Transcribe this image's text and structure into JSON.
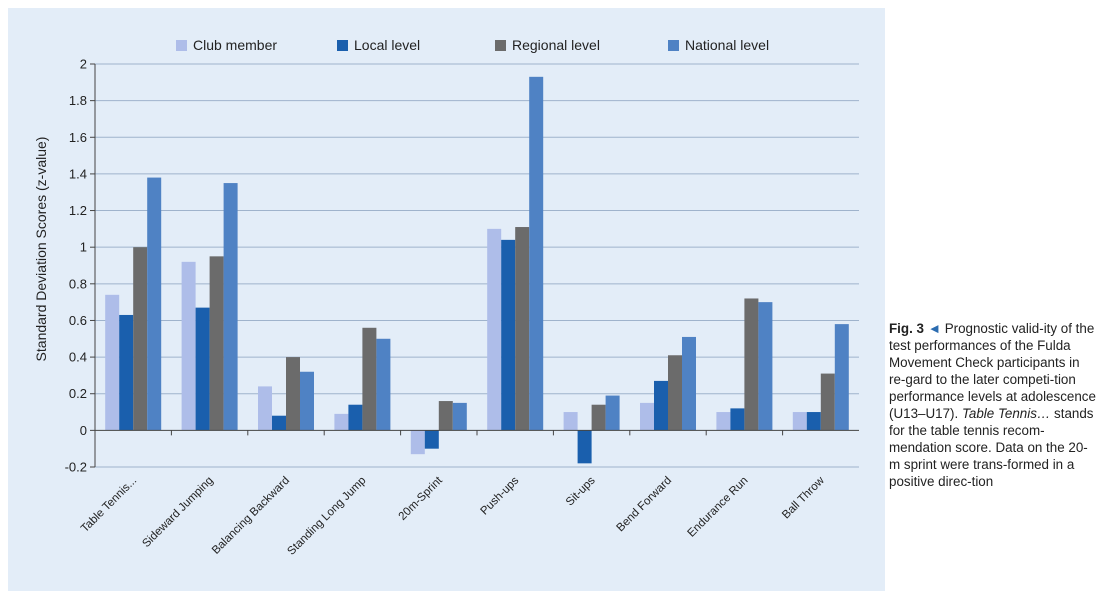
{
  "chart_data": {
    "type": "bar",
    "ylabel": "Standard Deviation Scores (z-value)",
    "xlabel": "",
    "ylim": [
      -0.2,
      2
    ],
    "yticks": [
      "-0.2",
      "0",
      "0.2",
      "0.4",
      "0.6",
      "0.8",
      "1",
      "1.2",
      "1.4",
      "1.6",
      "1.8",
      "2"
    ],
    "grid": true,
    "legend_position": "top",
    "categories": [
      "Table Tennis...",
      "Sideward Jumping",
      "Balancing Backward",
      "Standing Long Jump",
      "20m-Sprint",
      "Push-ups",
      "Sit-ups",
      "Bend Forward",
      "Endurance Run",
      "Ball Throw"
    ],
    "series": [
      {
        "name": "Club member",
        "color": "#aebde9",
        "values": [
          0.74,
          0.92,
          0.24,
          0.09,
          -0.13,
          1.1,
          0.1,
          0.15,
          0.1,
          0.1
        ]
      },
      {
        "name": "Local level",
        "color": "#1a5fad",
        "values": [
          0.63,
          0.67,
          0.08,
          0.14,
          -0.1,
          1.04,
          -0.18,
          0.27,
          0.12,
          0.1
        ]
      },
      {
        "name": "Regional level",
        "color": "#6b6b6b",
        "values": [
          1.0,
          0.95,
          0.4,
          0.56,
          0.16,
          1.11,
          0.14,
          0.41,
          0.72,
          0.31
        ]
      },
      {
        "name": "National level",
        "color": "#4f82c4",
        "values": [
          1.38,
          1.35,
          0.32,
          0.5,
          0.15,
          1.93,
          0.19,
          0.51,
          0.7,
          0.58
        ]
      }
    ]
  },
  "caption": {
    "fig": "Fig. 3",
    "arrow": "◄",
    "text1": "Prognostic valid-ity of the test performances of the Fulda Movement Check participants in re-gard to the later competi-tion performance levels at adolescence (U13–U17).",
    "italic": "Table Tennis…",
    "text2": "stands for the table tennis recom-mendation score. Data on the 20-m sprint were trans-formed in a positive direc-tion"
  }
}
